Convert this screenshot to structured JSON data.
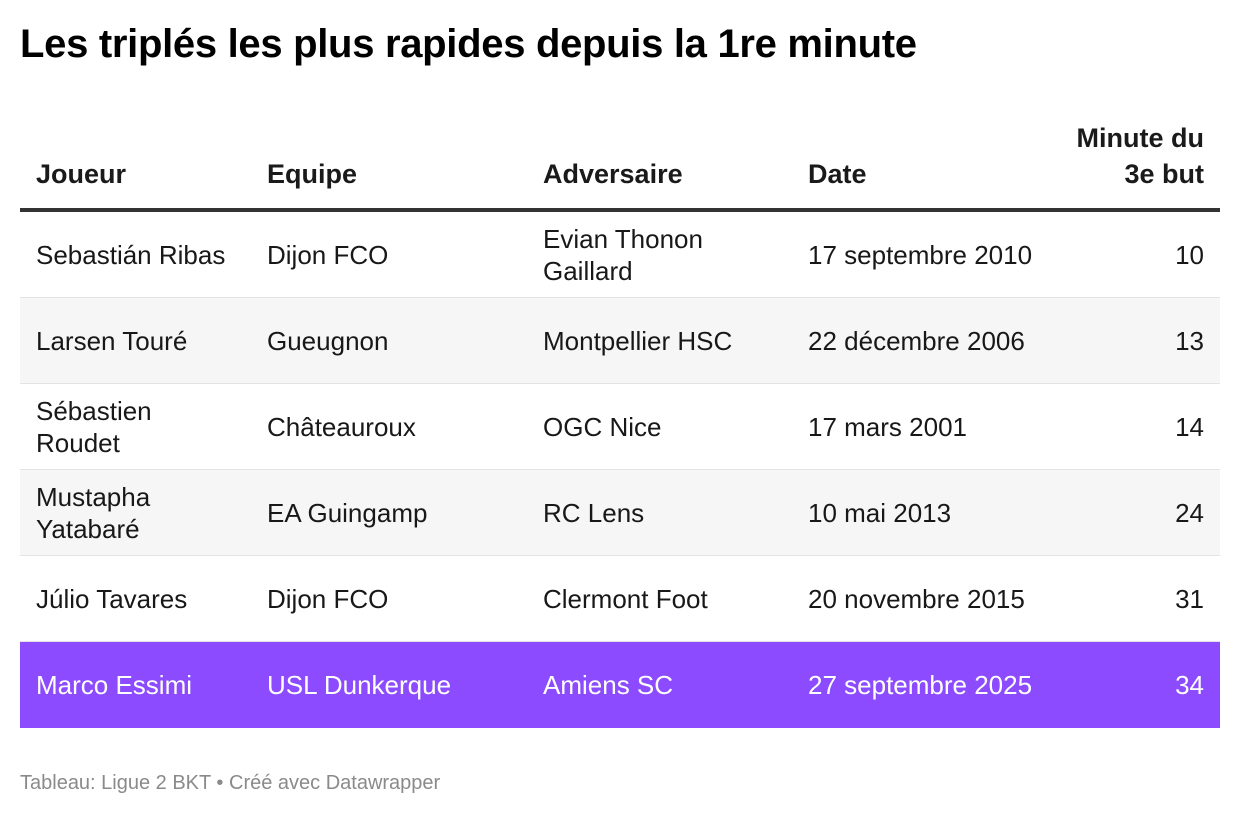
{
  "title": "Les triplés les plus rapides depuis la 1re minute",
  "chart_data": {
    "type": "table",
    "columns": [
      "Joueur",
      "Equipe",
      "Adversaire",
      "Date",
      "Minute du 3e but"
    ],
    "header_labels": {
      "joueur": "Joueur",
      "equipe": "Equipe",
      "adversaire": "Adversaire",
      "date": "Date",
      "minute_line1": "Minute du",
      "minute_line2": "3e but"
    },
    "rows": [
      {
        "joueur": "Sebastián Ribas",
        "equipe": "Dijon FCO",
        "adversaire": "Evian Thonon Gaillard",
        "date": "17 septembre 2010",
        "minute": 10,
        "highlighted": false
      },
      {
        "joueur": "Larsen Touré",
        "equipe": "Gueugnon",
        "adversaire": "Montpellier HSC",
        "date": "22 décembre 2006",
        "minute": 13,
        "highlighted": false
      },
      {
        "joueur": "Sébastien Roudet",
        "equipe": "Châteauroux",
        "adversaire": "OGC Nice",
        "date": "17 mars 2001",
        "minute": 14,
        "highlighted": false
      },
      {
        "joueur": "Mustapha Yatabaré",
        "equipe": "EA Guingamp",
        "adversaire": "RC Lens",
        "date": "10 mai 2013",
        "minute": 24,
        "highlighted": false
      },
      {
        "joueur": "Júlio Tavares",
        "equipe": "Dijon FCO",
        "adversaire": "Clermont Foot",
        "date": "20 novembre 2015",
        "minute": 31,
        "highlighted": false
      },
      {
        "joueur": "Marco Essimi",
        "equipe": "USL Dunkerque",
        "adversaire": "Amiens SC",
        "date": "27 septembre 2025",
        "minute": 34,
        "highlighted": true
      }
    ]
  },
  "colors": {
    "highlight": "#8c4bff",
    "alt_row": "#f6f6f6",
    "header_rule": "#333333"
  },
  "footer": "Tableau: Ligue 2 BKT • Créé avec Datawrapper"
}
